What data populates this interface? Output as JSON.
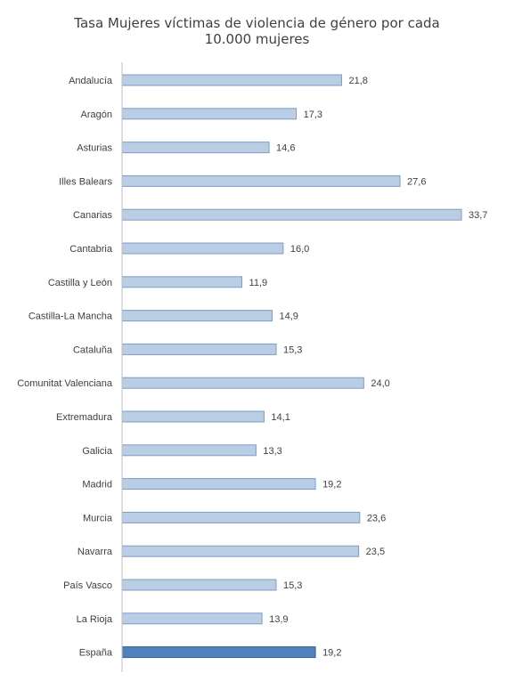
{
  "chart_data": {
    "type": "bar",
    "orientation": "horizontal",
    "title": "Tasa Mujeres víctimas de violencia de género por cada 10.000 mujeres",
    "title_lines": [
      "Tasa Mujeres víctimas de violencia de género por cada",
      "10.000 mujeres"
    ],
    "categories": [
      "Andalucía",
      "Aragón",
      "Asturias",
      "Illes Balears",
      "Canarias",
      "Cantabria",
      "Castilla y León",
      "Castilla-La Mancha",
      "Cataluña",
      "Comunitat Valenciana",
      "Extremadura",
      "Galicia",
      "Madrid",
      "Murcia",
      "Navarra",
      "País Vasco",
      "La Rioja",
      "España"
    ],
    "values": [
      21.8,
      17.3,
      14.6,
      27.6,
      33.7,
      16.0,
      11.9,
      14.9,
      15.3,
      24.0,
      14.1,
      13.3,
      19.2,
      23.6,
      23.5,
      15.3,
      13.9,
      19.2
    ],
    "value_labels": [
      "21,8",
      "17,3",
      "14,6",
      "27,6",
      "33,7",
      "16,0",
      "11,9",
      "14,9",
      "15,3",
      "24,0",
      "14,1",
      "13,3",
      "19,2",
      "23,6",
      "23,5",
      "15,3",
      "13,9",
      "19,2"
    ],
    "highlight_category": "España",
    "xlim": [
      0,
      33.7
    ],
    "grid": false,
    "legend": "none",
    "colors": {
      "bar": "#b9cde5",
      "bar_stroke": "#7f9cc0",
      "highlight": "#4f81bd",
      "highlight_stroke": "#385d8a",
      "axis": "#bfbfbf",
      "text": "#404040"
    }
  }
}
